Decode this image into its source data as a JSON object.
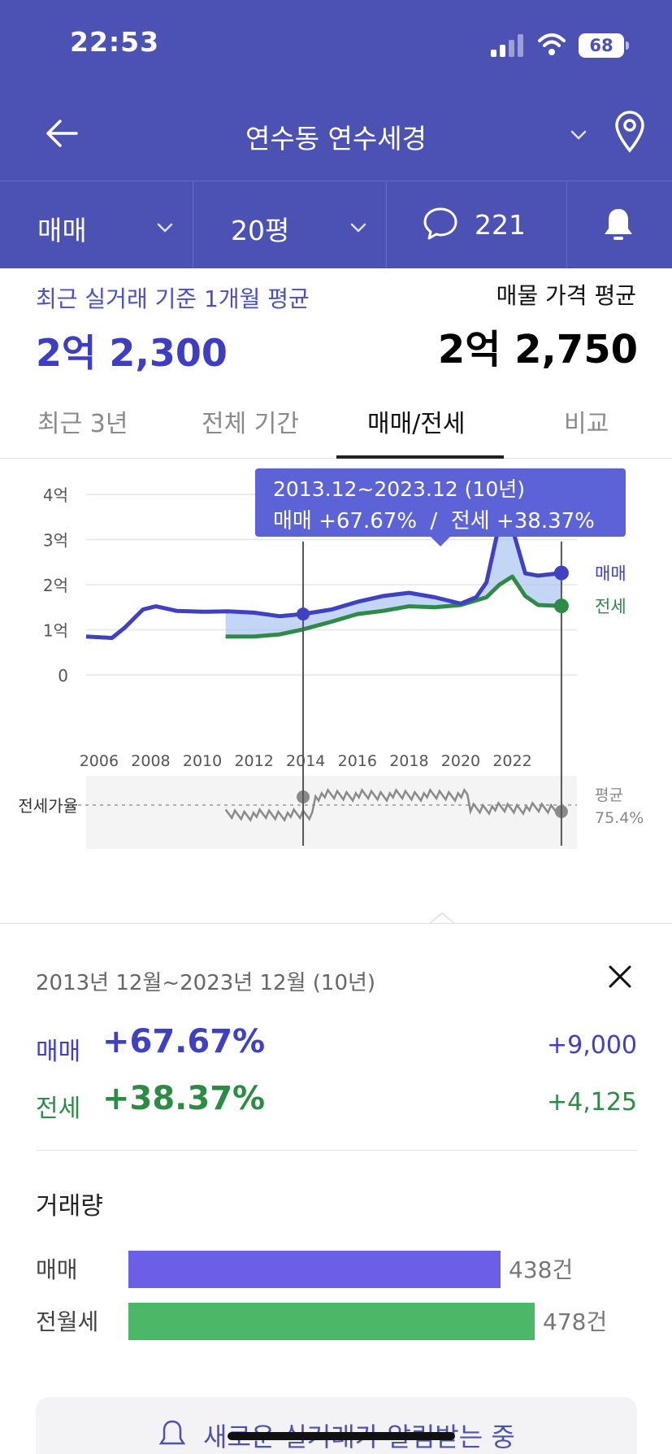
{
  "status": {
    "time": "22:53",
    "battery": "68"
  },
  "nav": {
    "title": "연수동 연수세경"
  },
  "filters": {
    "trade_type": "매매",
    "size": "20평",
    "comment_count": "221"
  },
  "summary": {
    "recent_label": "최근 실거래 기준 1개월 평균",
    "recent_value": "2억 2,300",
    "listing_label": "매물 가격 평균",
    "listing_value": "2억 2,750"
  },
  "tabs": [
    {
      "label": "최근 3년",
      "active": false
    },
    {
      "label": "전체 기간",
      "active": false
    },
    {
      "label": "매매/전세",
      "active": true
    },
    {
      "label": "비교",
      "active": false
    }
  ],
  "tooltip": {
    "line1": "2013.12~2023.12 (10년)",
    "line2": "매매 +67.67%  /  전세 +38.37%"
  },
  "colors": {
    "sale": "#4040c4",
    "jeonse": "#2e8b46",
    "header": "#4b52b4",
    "sale_bar": "#6a5fe6",
    "jeonse_bar": "#4cb766"
  },
  "chart_data": {
    "type": "line",
    "y_ticks": [
      "4억",
      "3억",
      "2억",
      "1억",
      "0"
    ],
    "ylim": [
      0,
      4
    ],
    "x_ticks": [
      "2006",
      "2008",
      "2010",
      "2012",
      "2014",
      "2016",
      "2018",
      "2020",
      "2022"
    ],
    "xlim": [
      2005.5,
      2024.5
    ],
    "ratio_label": "전세가율",
    "avg_label": "평균",
    "avg_value": "75.4%",
    "series": [
      {
        "name": "매매",
        "x": [
          2005.5,
          2006.5,
          2007,
          2007.7,
          2008.2,
          2009,
          2010,
          2011,
          2012,
          2013,
          2013.9,
          2015,
          2016,
          2017,
          2018,
          2019,
          2020,
          2020.6,
          2021,
          2021.5,
          2022,
          2022.5,
          2023,
          2023.9
        ],
        "y": [
          0.85,
          0.82,
          1.05,
          1.45,
          1.52,
          1.42,
          1.4,
          1.41,
          1.38,
          1.3,
          1.35,
          1.45,
          1.62,
          1.75,
          1.82,
          1.72,
          1.58,
          1.72,
          2.05,
          3.35,
          3.25,
          2.25,
          2.2,
          2.26
        ]
      },
      {
        "name": "전세",
        "x": [
          2010.9,
          2012,
          2013,
          2013.9,
          2015,
          2016,
          2017,
          2018,
          2019,
          2020,
          2021,
          2021.5,
          2022,
          2022.5,
          2023,
          2023.9
        ],
        "y": [
          0.85,
          0.85,
          0.9,
          1.01,
          1.18,
          1.35,
          1.42,
          1.52,
          1.5,
          1.55,
          1.72,
          2.0,
          2.18,
          1.75,
          1.55,
          1.53
        ]
      }
    ],
    "selection": {
      "start": 2013.9,
      "end": 2023.9
    }
  },
  "period_detail": {
    "label": "2013년 12월~2023년 12월 (10년)",
    "sale": {
      "name": "매매",
      "pct": "+67.67%",
      "amount": "+9,000"
    },
    "jeonse": {
      "name": "전세",
      "pct": "+38.37%",
      "amount": "+4,125"
    }
  },
  "volume": {
    "title": "거래량",
    "items": [
      {
        "name": "매매",
        "count": 438,
        "count_label": "438건"
      },
      {
        "name": "전월세",
        "count": 478,
        "count_label": "478건"
      }
    ]
  },
  "bottom_card": {
    "text": "새로운 실거래가 알림받는 중"
  }
}
